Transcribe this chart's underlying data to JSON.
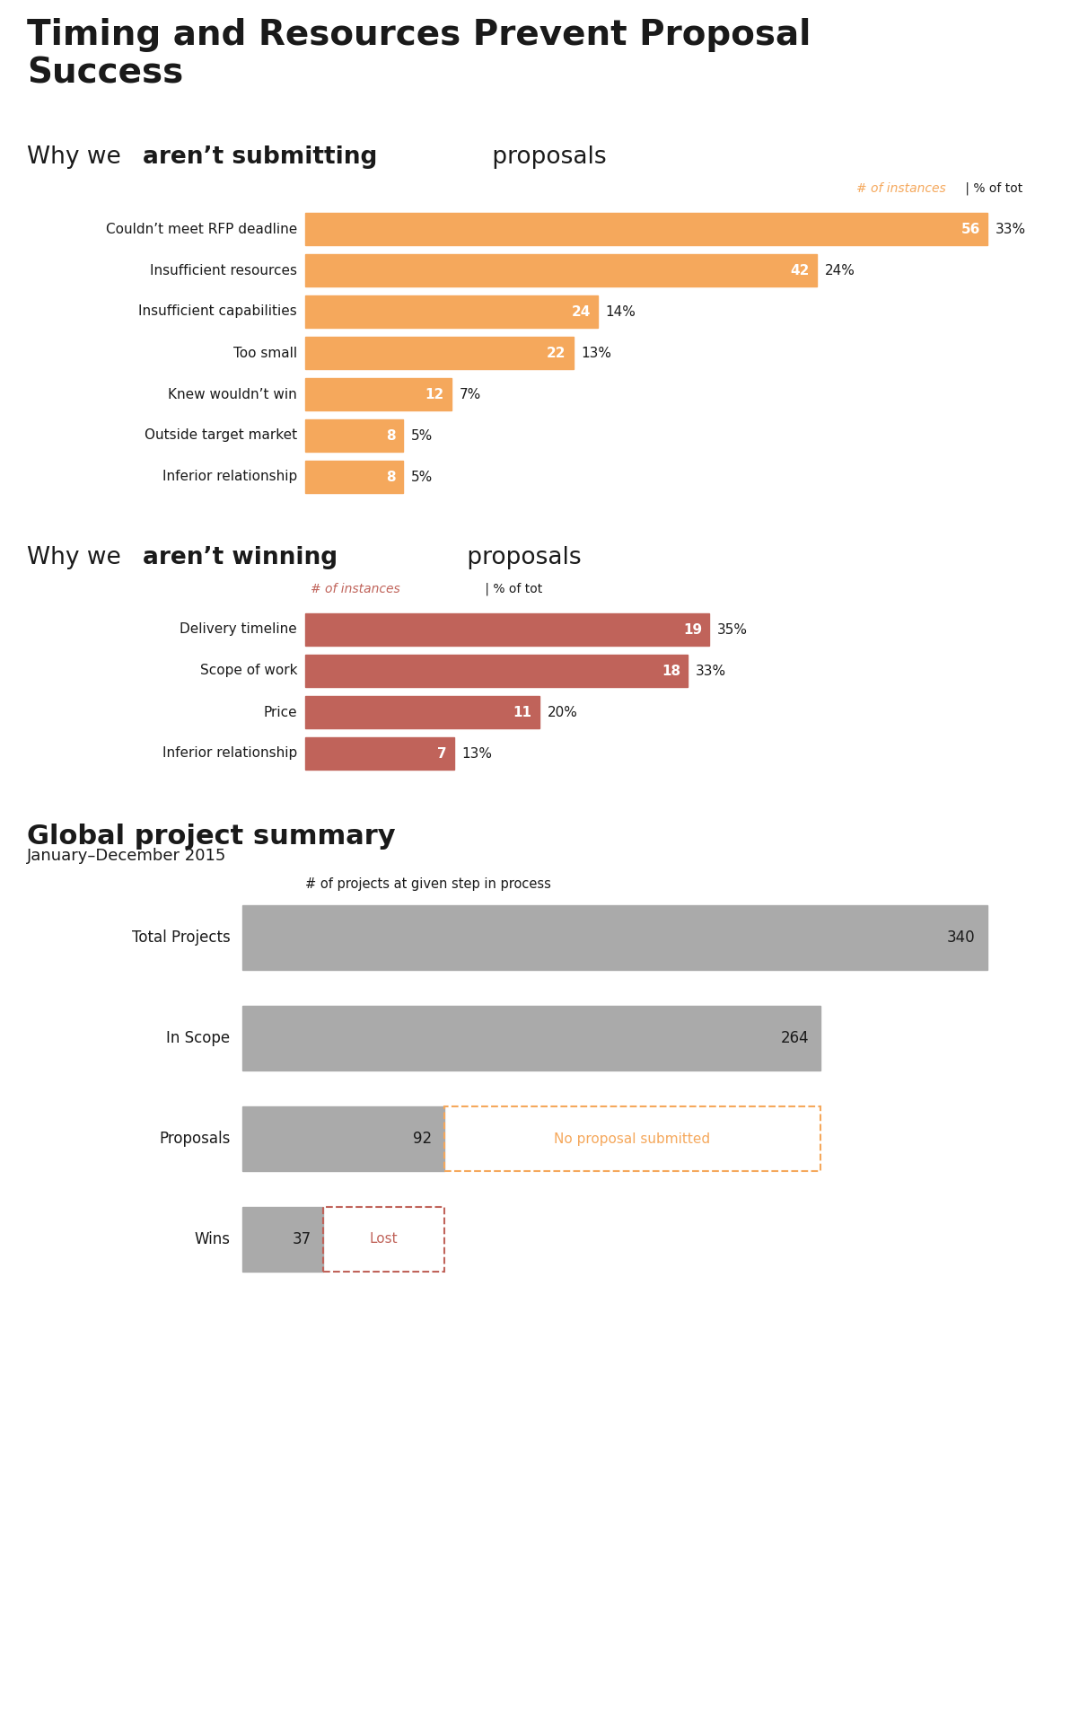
{
  "main_title": "Timing and Resources Prevent Proposal\nSuccess",
  "section1_heading_parts": [
    "Why we ",
    "aren’t submitting",
    " proposals"
  ],
  "section1_legend_colored": "# of instances",
  "section1_legend_plain": " | % of tot",
  "section1_bars": [
    {
      "label": "Couldn’t meet RFP deadline",
      "value": 56,
      "pct": "33%"
    },
    {
      "label": "Insufficient resources",
      "value": 42,
      "pct": "24%"
    },
    {
      "label": "Insufficient capabilities",
      "value": 24,
      "pct": "14%"
    },
    {
      "label": "Too small",
      "value": 22,
      "pct": "13%"
    },
    {
      "label": "Knew wouldn’t win",
      "value": 12,
      "pct": "7%"
    },
    {
      "label": "Outside target market",
      "value": 8,
      "pct": "5%"
    },
    {
      "label": "Inferior relationship",
      "value": 8,
      "pct": "5%"
    }
  ],
  "section1_max": 56,
  "section1_color": "#F5A85C",
  "section2_heading_parts": [
    "Why we ",
    "aren’t winning",
    " proposals"
  ],
  "section2_legend_colored": "# of instances",
  "section2_legend_plain": " | % of tot",
  "section2_bars": [
    {
      "label": "Delivery timeline",
      "value": 19,
      "pct": "35%"
    },
    {
      "label": "Scope of work",
      "value": 18,
      "pct": "33%"
    },
    {
      "label": "Price",
      "value": 11,
      "pct": "20%"
    },
    {
      "label": "Inferior relationship",
      "value": 7,
      "pct": "13%"
    }
  ],
  "section2_max": 19,
  "section2_color": "#C0635A",
  "section3_title": "Global project summary",
  "section3_subtitle": "January–December 2015",
  "section3_xlabel": "# of projects at given step in process",
  "section3_bars": [
    {
      "label": "Total Projects",
      "value": 340,
      "dashed_label": null,
      "dashed_value": null,
      "dash_color": null
    },
    {
      "label": "In Scope",
      "value": 264,
      "dashed_label": null,
      "dashed_value": null,
      "dash_color": null
    },
    {
      "label": "Proposals",
      "value": 92,
      "dashed_label": "No proposal submitted",
      "dashed_value": 172,
      "dash_color": "#F5A85C"
    },
    {
      "label": "Wins",
      "value": 37,
      "dashed_label": "Lost",
      "dashed_value": 55,
      "dash_color": "#C0635A"
    }
  ],
  "section3_max": 340,
  "section3_color": "#AAAAAA",
  "bg_color": "#FFFFFF",
  "text_color": "#1a1a1a",
  "orange_color": "#F5A85C",
  "red_color": "#C0635A",
  "figwidth": 11.92,
  "figheight": 19.03,
  "dpi": 100
}
